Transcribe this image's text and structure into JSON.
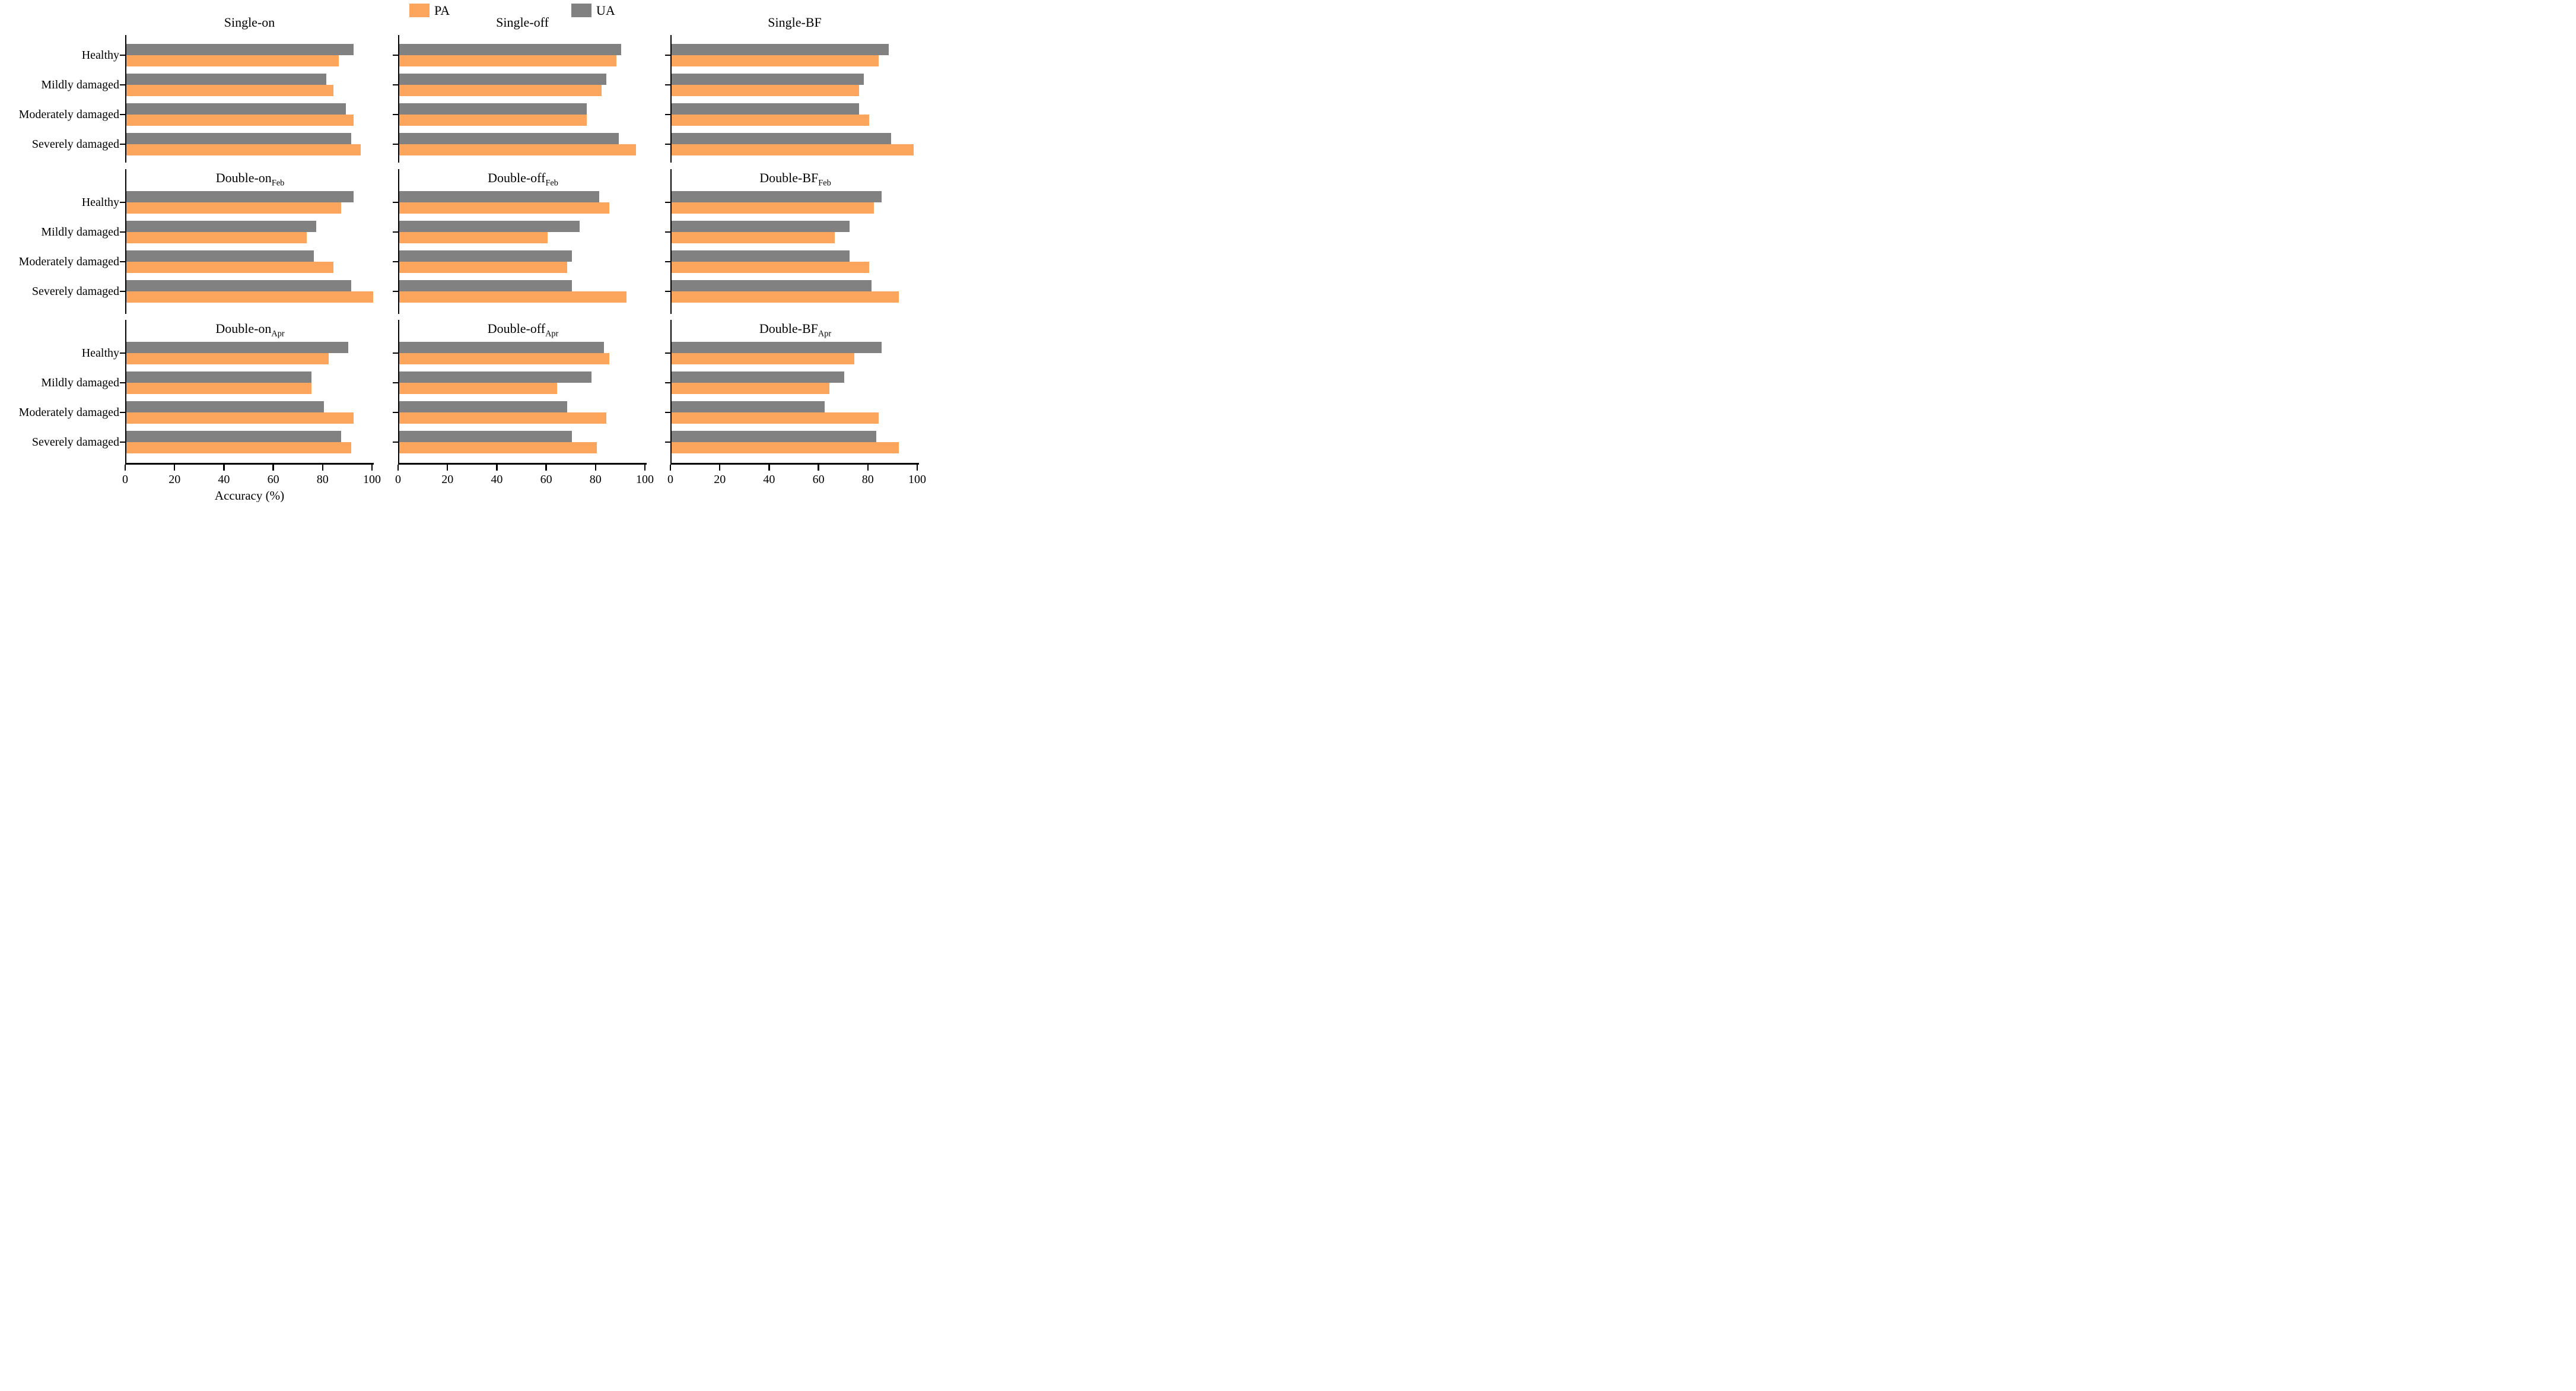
{
  "legend": {
    "items": [
      {
        "label": "PA",
        "color": "#FCA55C"
      },
      {
        "label": "UA",
        "color": "#818181"
      }
    ]
  },
  "chart_data": {
    "type": "bar",
    "orientation": "horizontal",
    "title": "",
    "xlabel": "Accuracy (%)",
    "xticks": [
      0,
      20,
      40,
      60,
      80,
      100
    ],
    "xlim": [
      0,
      100
    ],
    "grid": false,
    "legend_position": "top-center",
    "categories": [
      "Healthy",
      "Mildly damaged",
      "Moderately damaged",
      "Severely damaged"
    ],
    "series_names": [
      "PA",
      "UA"
    ],
    "colors": {
      "pa": "#FCA55C",
      "ua": "#818181",
      "axis": "#000000"
    },
    "panels": [
      {
        "title": "Single-on",
        "sub": "",
        "pa": [
          86,
          84,
          92,
          95
        ],
        "ua": [
          92,
          81,
          89,
          91
        ]
      },
      {
        "title": "Single-off",
        "sub": "",
        "pa": [
          88,
          82,
          76,
          96
        ],
        "ua": [
          90,
          84,
          76,
          89
        ]
      },
      {
        "title": "Single-BF",
        "sub": "",
        "pa": [
          84,
          76,
          80,
          98
        ],
        "ua": [
          88,
          78,
          76,
          89
        ]
      },
      {
        "title": "Double-on",
        "sub": "Feb",
        "pa": [
          87,
          73,
          84,
          100
        ],
        "ua": [
          92,
          77,
          76,
          91
        ]
      },
      {
        "title": "Double-off",
        "sub": "Feb",
        "pa": [
          85,
          60,
          68,
          92
        ],
        "ua": [
          81,
          73,
          70,
          70
        ]
      },
      {
        "title": "Double-BF",
        "sub": "Feb",
        "pa": [
          82,
          66,
          80,
          92
        ],
        "ua": [
          85,
          72,
          72,
          81
        ]
      },
      {
        "title": "Double-on",
        "sub": "Apr",
        "pa": [
          82,
          75,
          92,
          91
        ],
        "ua": [
          90,
          75,
          80,
          87
        ]
      },
      {
        "title": "Double-off",
        "sub": "Apr",
        "pa": [
          85,
          64,
          84,
          80
        ],
        "ua": [
          83,
          78,
          68,
          70
        ]
      },
      {
        "title": "Double-BF",
        "sub": "Apr",
        "pa": [
          74,
          64,
          84,
          92
        ],
        "ua": [
          85,
          70,
          62,
          83
        ]
      }
    ]
  }
}
